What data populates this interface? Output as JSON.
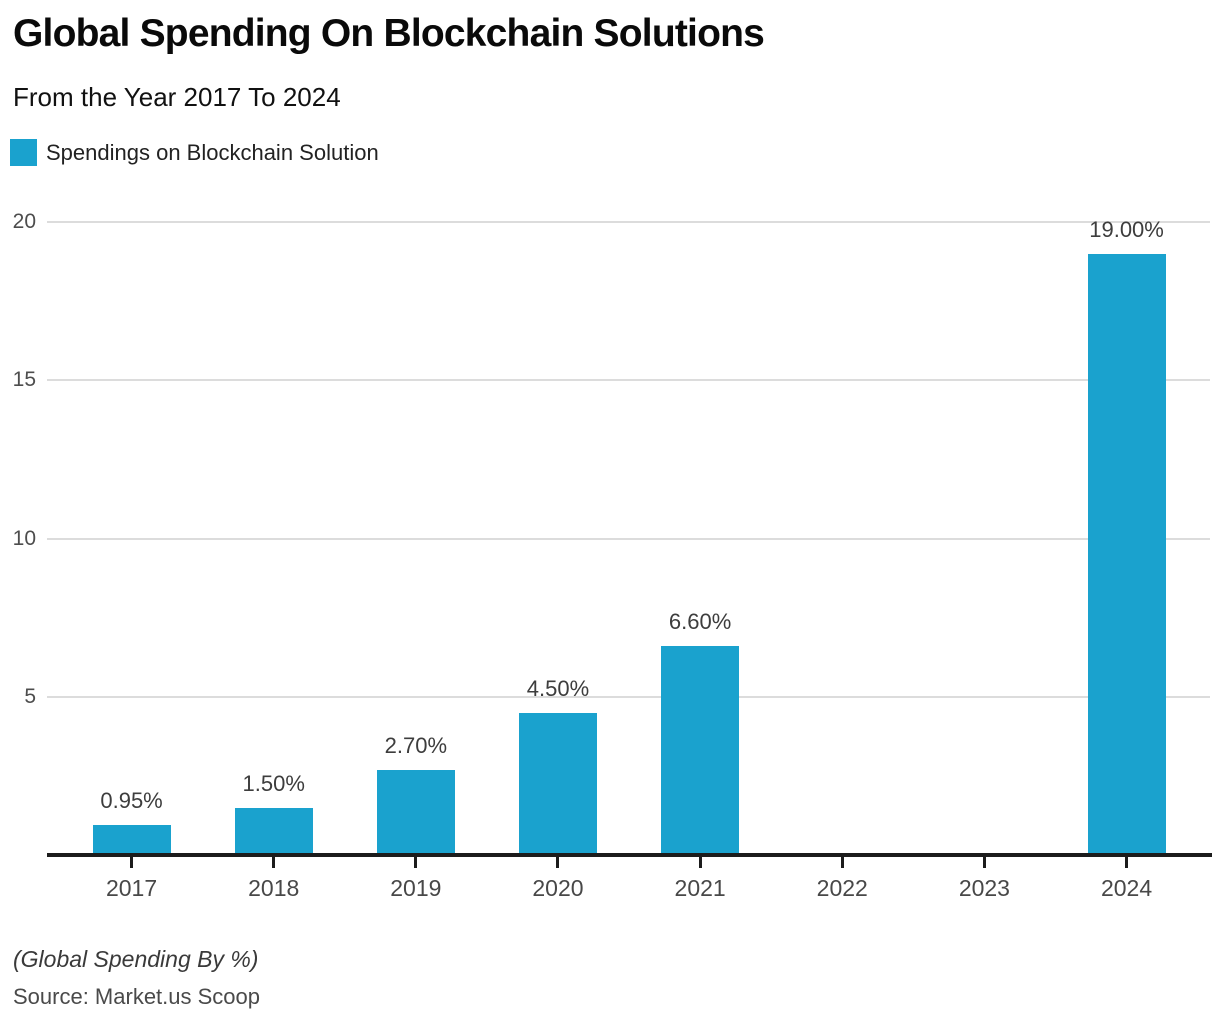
{
  "chart": {
    "title": "Global Spending On Blockchain Solutions",
    "subtitle": "From the Year 2017 To 2024",
    "legend_label": "Spendings on Blockchain Solution",
    "unit_note": "(Global Spending By %)",
    "source": "Source: Market.us Scoop"
  },
  "chart_data": {
    "type": "bar",
    "title": "Global Spending On Blockchain Solutions",
    "subtitle": "From the Year 2017 To 2024",
    "legend": [
      "Spendings on Blockchain Solution"
    ],
    "legend_position": "top-left",
    "categories": [
      "2017",
      "2018",
      "2019",
      "2020",
      "2021",
      "2022",
      "2023",
      "2024"
    ],
    "series": [
      {
        "name": "Spendings on Blockchain Solution",
        "values": [
          0.95,
          1.5,
          2.7,
          4.5,
          6.6,
          null,
          null,
          19.0
        ]
      }
    ],
    "value_labels": [
      "0.95%",
      "1.50%",
      "2.70%",
      "4.50%",
      "6.60%",
      null,
      null,
      "19.00%"
    ],
    "xlabel": "",
    "ylabel": "Global Spending By %",
    "y_ticks": [
      5,
      10,
      15,
      20
    ],
    "ylim": [
      0,
      20.7
    ],
    "grid": "horizontal",
    "bar_color": "#1AA2CE",
    "gridline_color": "#dcdcdc",
    "axis_color": "#1c1c1c"
  }
}
